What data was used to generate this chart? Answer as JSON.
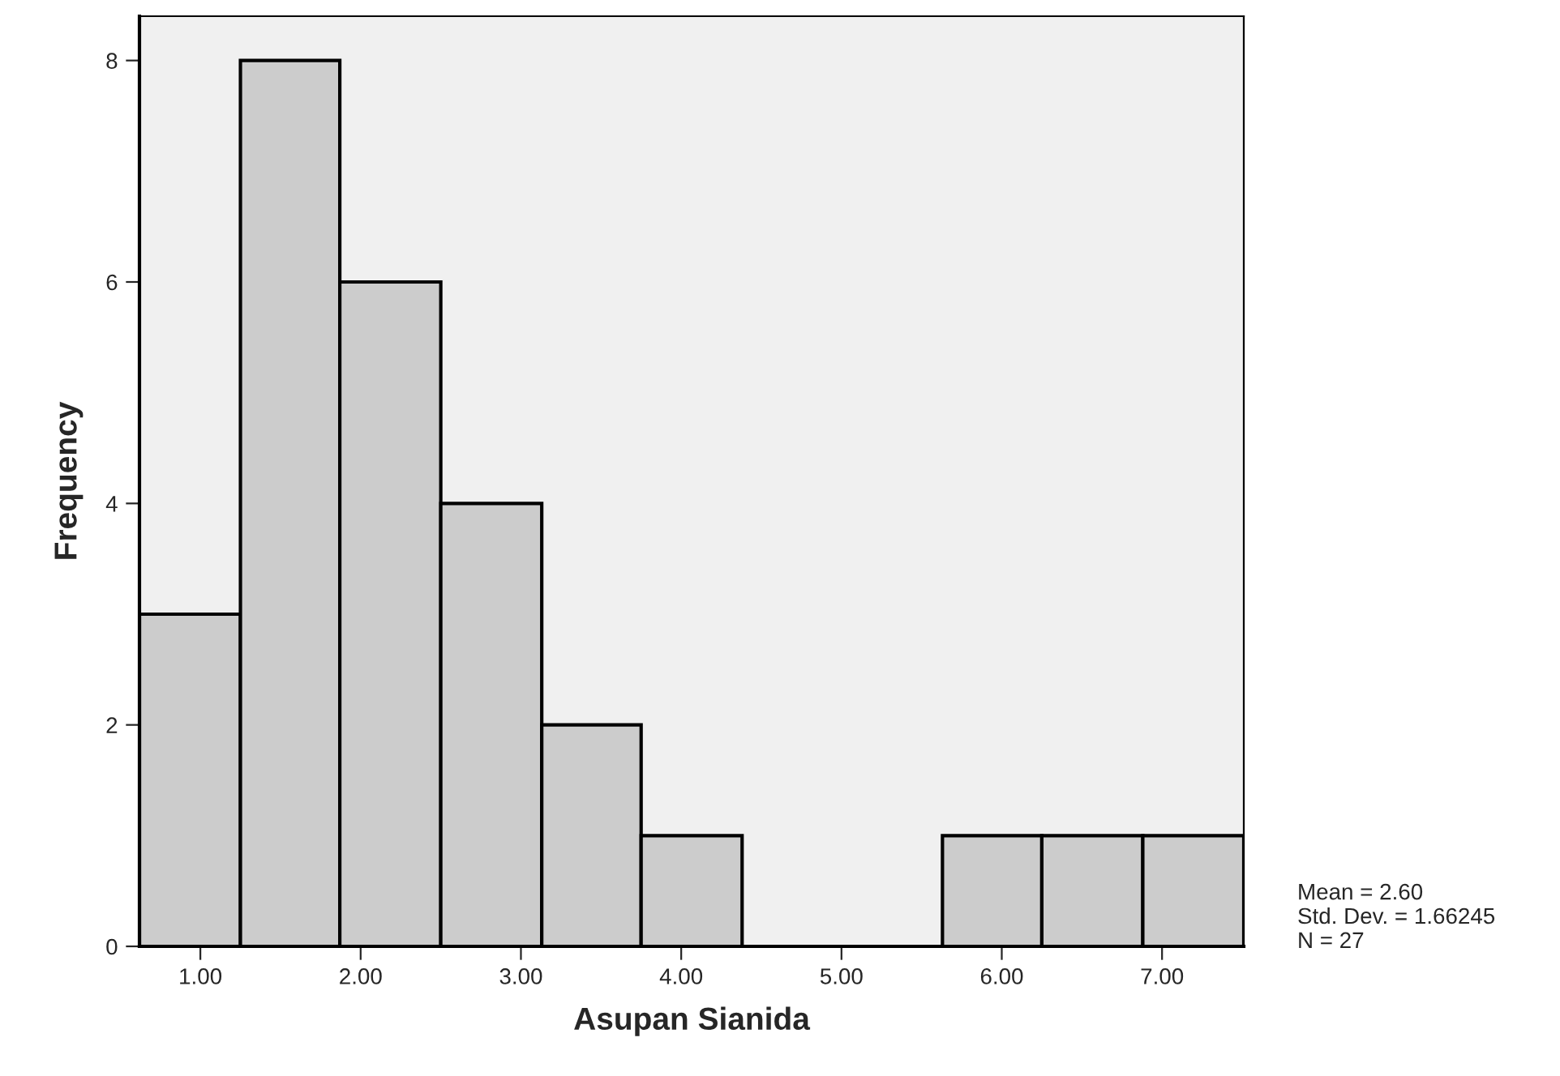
{
  "chart_data": {
    "type": "histogram",
    "xlabel": "Asupan Sianida",
    "ylabel": "Frequency",
    "bins": [
      0.62,
      1.25,
      1.87,
      2.5,
      3.13,
      3.75,
      4.38,
      5.63,
      6.25,
      6.88,
      7.51
    ],
    "values": [
      3,
      8,
      6,
      4,
      2,
      1,
      0,
      1,
      1,
      1
    ],
    "color": "#cccccc",
    "xlim": [
      0.62,
      7.51
    ],
    "ylim": [
      0,
      8.4
    ],
    "xticks": [
      {
        "value": 1,
        "label": "1.00"
      },
      {
        "value": 2,
        "label": "2.00"
      },
      {
        "value": 3,
        "label": "3.00"
      },
      {
        "value": 4,
        "label": "4.00"
      },
      {
        "value": 5,
        "label": "5.00"
      },
      {
        "value": 6,
        "label": "6.00"
      },
      {
        "value": 7,
        "label": "7.00"
      }
    ],
    "yticks": [
      0,
      2,
      4,
      6,
      8
    ],
    "annotations": [
      "Mean = 2.60\nStd. Dev. = 1.66245\nN = 27"
    ],
    "grid": false
  }
}
